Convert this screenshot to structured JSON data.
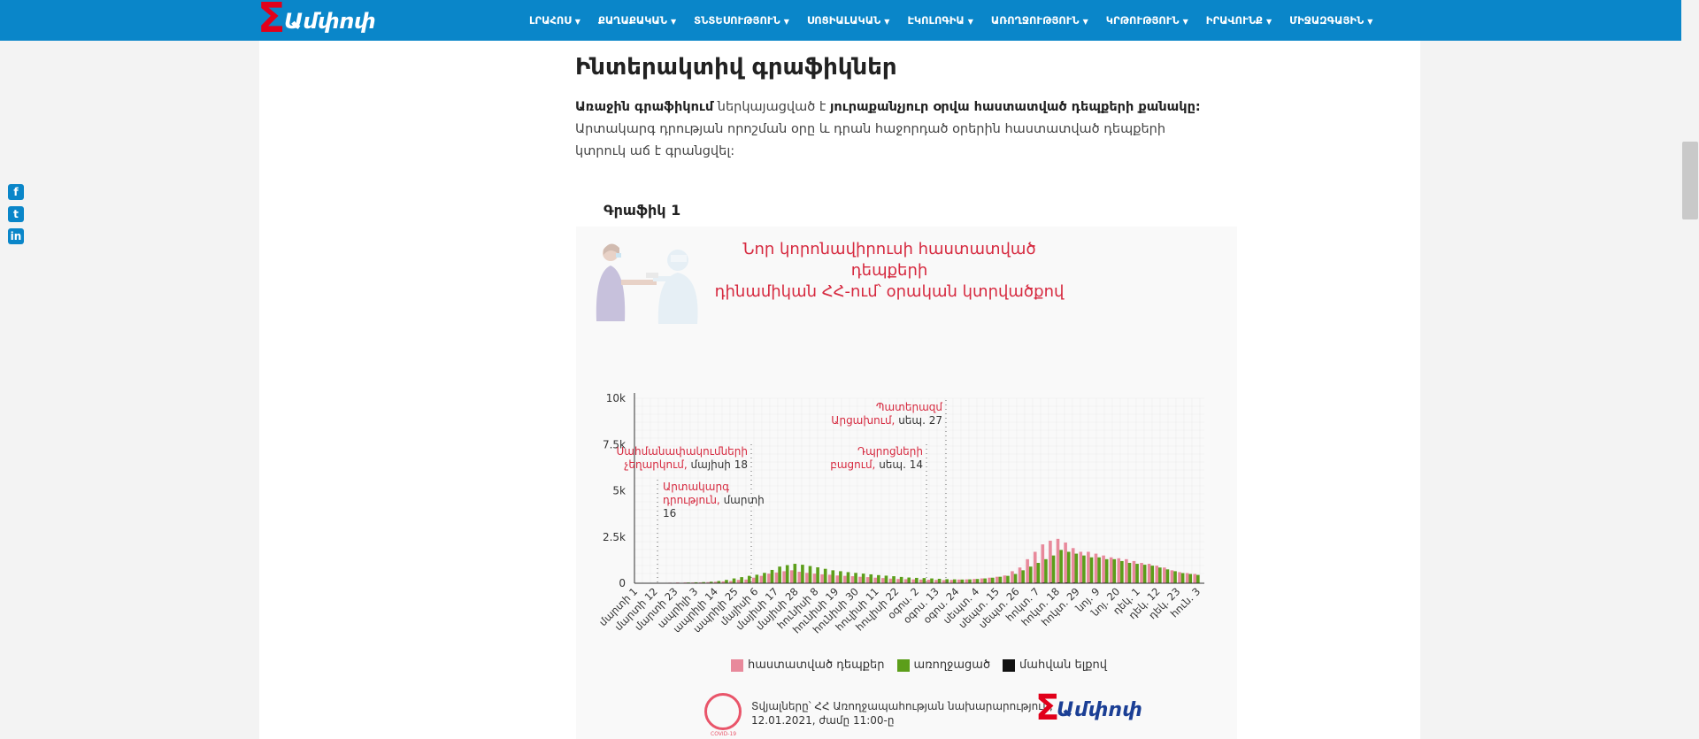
{
  "brand": {
    "logo_text": "Ամփոփ",
    "accent": "#0a86c9",
    "logo_red": "#e1001a"
  },
  "nav": [
    {
      "label": "ԼՐԱՀՈՍ"
    },
    {
      "label": "ՔԱՂԱՔԱԿԱՆ"
    },
    {
      "label": "ՏՆՏԵՍՈՒԹՅՈՒՆ"
    },
    {
      "label": "ՍՈՑԻԱԼԱԿԱՆ"
    },
    {
      "label": "ԷԿՈԼՈԳԻԱ"
    },
    {
      "label": "ԱՌՈՂՋՈՒԹՅՈՒՆ"
    },
    {
      "label": "ԿՐԹՈՒԹՅՈՒՆ"
    },
    {
      "label": "ԻՐԱՎՈՒՆՔ"
    },
    {
      "label": "ՄԻՋԱԶԳԱՅԻՆ"
    }
  ],
  "share": {
    "icons": [
      "facebook-icon",
      "twitter-icon",
      "linkedin-icon"
    ]
  },
  "article": {
    "heading": "Ինտերակտիվ գրաֆիկներ",
    "para_bold1": "Առաջին գրաֆիկում",
    "para_text1": " ներկայացված է ",
    "para_bold2": "յուրաքանչյուր օրվա հաստատված դեպքերի քանակը:",
    "para_text2": " Արտակարգ դրության որոշման օրը և դրան հաջորդած օրերին հաստատված դեպքերի կտրուկ աճ է գրանցվել:"
  },
  "chart_label": "Գրաֆիկ 1",
  "chart": {
    "title_line1": "Նոր կորոնավիրուսի հաստատված դեպքերի",
    "title_line2": "դինամիկան ՀՀ-ում՝ օրական կտրվածքով",
    "legend": [
      {
        "label": "հաստատված դեպքեր",
        "color": "#e8899b"
      },
      {
        "label": "առողջացած",
        "color": "#5c9e1a"
      },
      {
        "label": "մահվան ելքով",
        "color": "#111111"
      }
    ],
    "source_line1": "Տվյալները՝ ՀՀ Առողջապահության նախարարություն,",
    "source_line2": "12.01.2021, ժամը 11:00-ը",
    "covid_badge": "COVID-19",
    "source_logo": "Ամփոփ",
    "annotations": [
      {
        "red": "Արտակարգ",
        "red2": "դրություն,",
        "date": "մարտի",
        "date2": "16"
      },
      {
        "red": "Սահմանափակումների",
        "red2": "չեղարկում,",
        "date": "մայիսի 18"
      },
      {
        "red": "Դպրոցների",
        "red2": "բացում,",
        "date": "սեպ. 14"
      },
      {
        "red": "Պատերազմ",
        "red2": "Արցախում,",
        "date": "սեպ. 27"
      }
    ]
  },
  "chart_data": {
    "type": "bar",
    "ylim": [
      0,
      10000
    ],
    "yticks": [
      "0",
      "2.5k",
      "5k",
      "7.5k",
      "10k"
    ],
    "ytick_values": [
      0,
      2500,
      5000,
      7500,
      10000
    ],
    "xtick_labels": [
      "մարտի 1",
      "մարտի 12",
      "մարտի 23",
      "ապրիլի 3",
      "ապրիլի 14",
      "ապրիլի 25",
      "մայիսի 6",
      "մայիսի 17",
      "մայիսի 28",
      "հունիսի 8",
      "հունիսի 19",
      "հունիսի 30",
      "հուլիսի 11",
      "հուլիսի 22",
      "օգոս. 2",
      "օգոս. 13",
      "օգոս. 24",
      "սեպտ. 4",
      "սեպտ. 15",
      "սեպտ. 26",
      "հոկտ. 7",
      "հոկտ. 18",
      "հոկտ. 29",
      "նոյ. 9",
      "նոյ. 20",
      "դեկ. 1",
      "դեկ. 12",
      "դեկ. 23",
      "հուն. 3"
    ],
    "bin_days": 4,
    "series": [
      {
        "name": "հաստատված դեպքեր",
        "color": "#e8899b",
        "values": [
          0,
          0,
          5,
          15,
          30,
          40,
          40,
          40,
          45,
          60,
          80,
          100,
          120,
          180,
          200,
          300,
          400,
          520,
          580,
          650,
          700,
          620,
          560,
          520,
          480,
          460,
          420,
          400,
          380,
          350,
          330,
          300,
          280,
          250,
          230,
          220,
          210,
          200,
          190,
          180,
          170,
          180,
          200,
          210,
          230,
          260,
          300,
          350,
          420,
          650,
          850,
          1300,
          1700,
          2100,
          2300,
          2400,
          2200,
          1900,
          1700,
          1700,
          1600,
          1500,
          1400,
          1350,
          1300,
          1200,
          1100,
          1050,
          950,
          850,
          700,
          600,
          550,
          500
        ]
      },
      {
        "name": "առողջացած",
        "color": "#5c9e1a",
        "values": [
          0,
          0,
          0,
          5,
          10,
          20,
          40,
          50,
          60,
          80,
          120,
          180,
          260,
          330,
          400,
          460,
          560,
          720,
          900,
          980,
          1050,
          1000,
          930,
          860,
          780,
          700,
          650,
          600,
          560,
          520,
          480,
          440,
          410,
          380,
          340,
          310,
          290,
          280,
          260,
          240,
          220,
          210,
          200,
          210,
          230,
          260,
          300,
          350,
          400,
          500,
          700,
          900,
          1100,
          1300,
          1500,
          1800,
          1700,
          1600,
          1500,
          1400,
          1400,
          1300,
          1300,
          1200,
          1100,
          1050,
          1000,
          950,
          850,
          750,
          650,
          550,
          500,
          450
        ]
      },
      {
        "name": "մահվան ելքով",
        "color": "#111111",
        "values": [
          0,
          0,
          0,
          1,
          2,
          3,
          4,
          5,
          5,
          6,
          8,
          10,
          12,
          15,
          17,
          18,
          20,
          20,
          20,
          18,
          16,
          14,
          12,
          10,
          9,
          8,
          7,
          7,
          6,
          6,
          5,
          5,
          5,
          4,
          4,
          4,
          4,
          4,
          4,
          4,
          4,
          4,
          5,
          5,
          6,
          8,
          10,
          12,
          16,
          20,
          25,
          30,
          35,
          40,
          45,
          45,
          42,
          40,
          38,
          36,
          34,
          32,
          30,
          28,
          26,
          24,
          22,
          20,
          18,
          16,
          14,
          12,
          11,
          10
        ]
      }
    ],
    "legend_placement": "bottom",
    "grid": true
  }
}
